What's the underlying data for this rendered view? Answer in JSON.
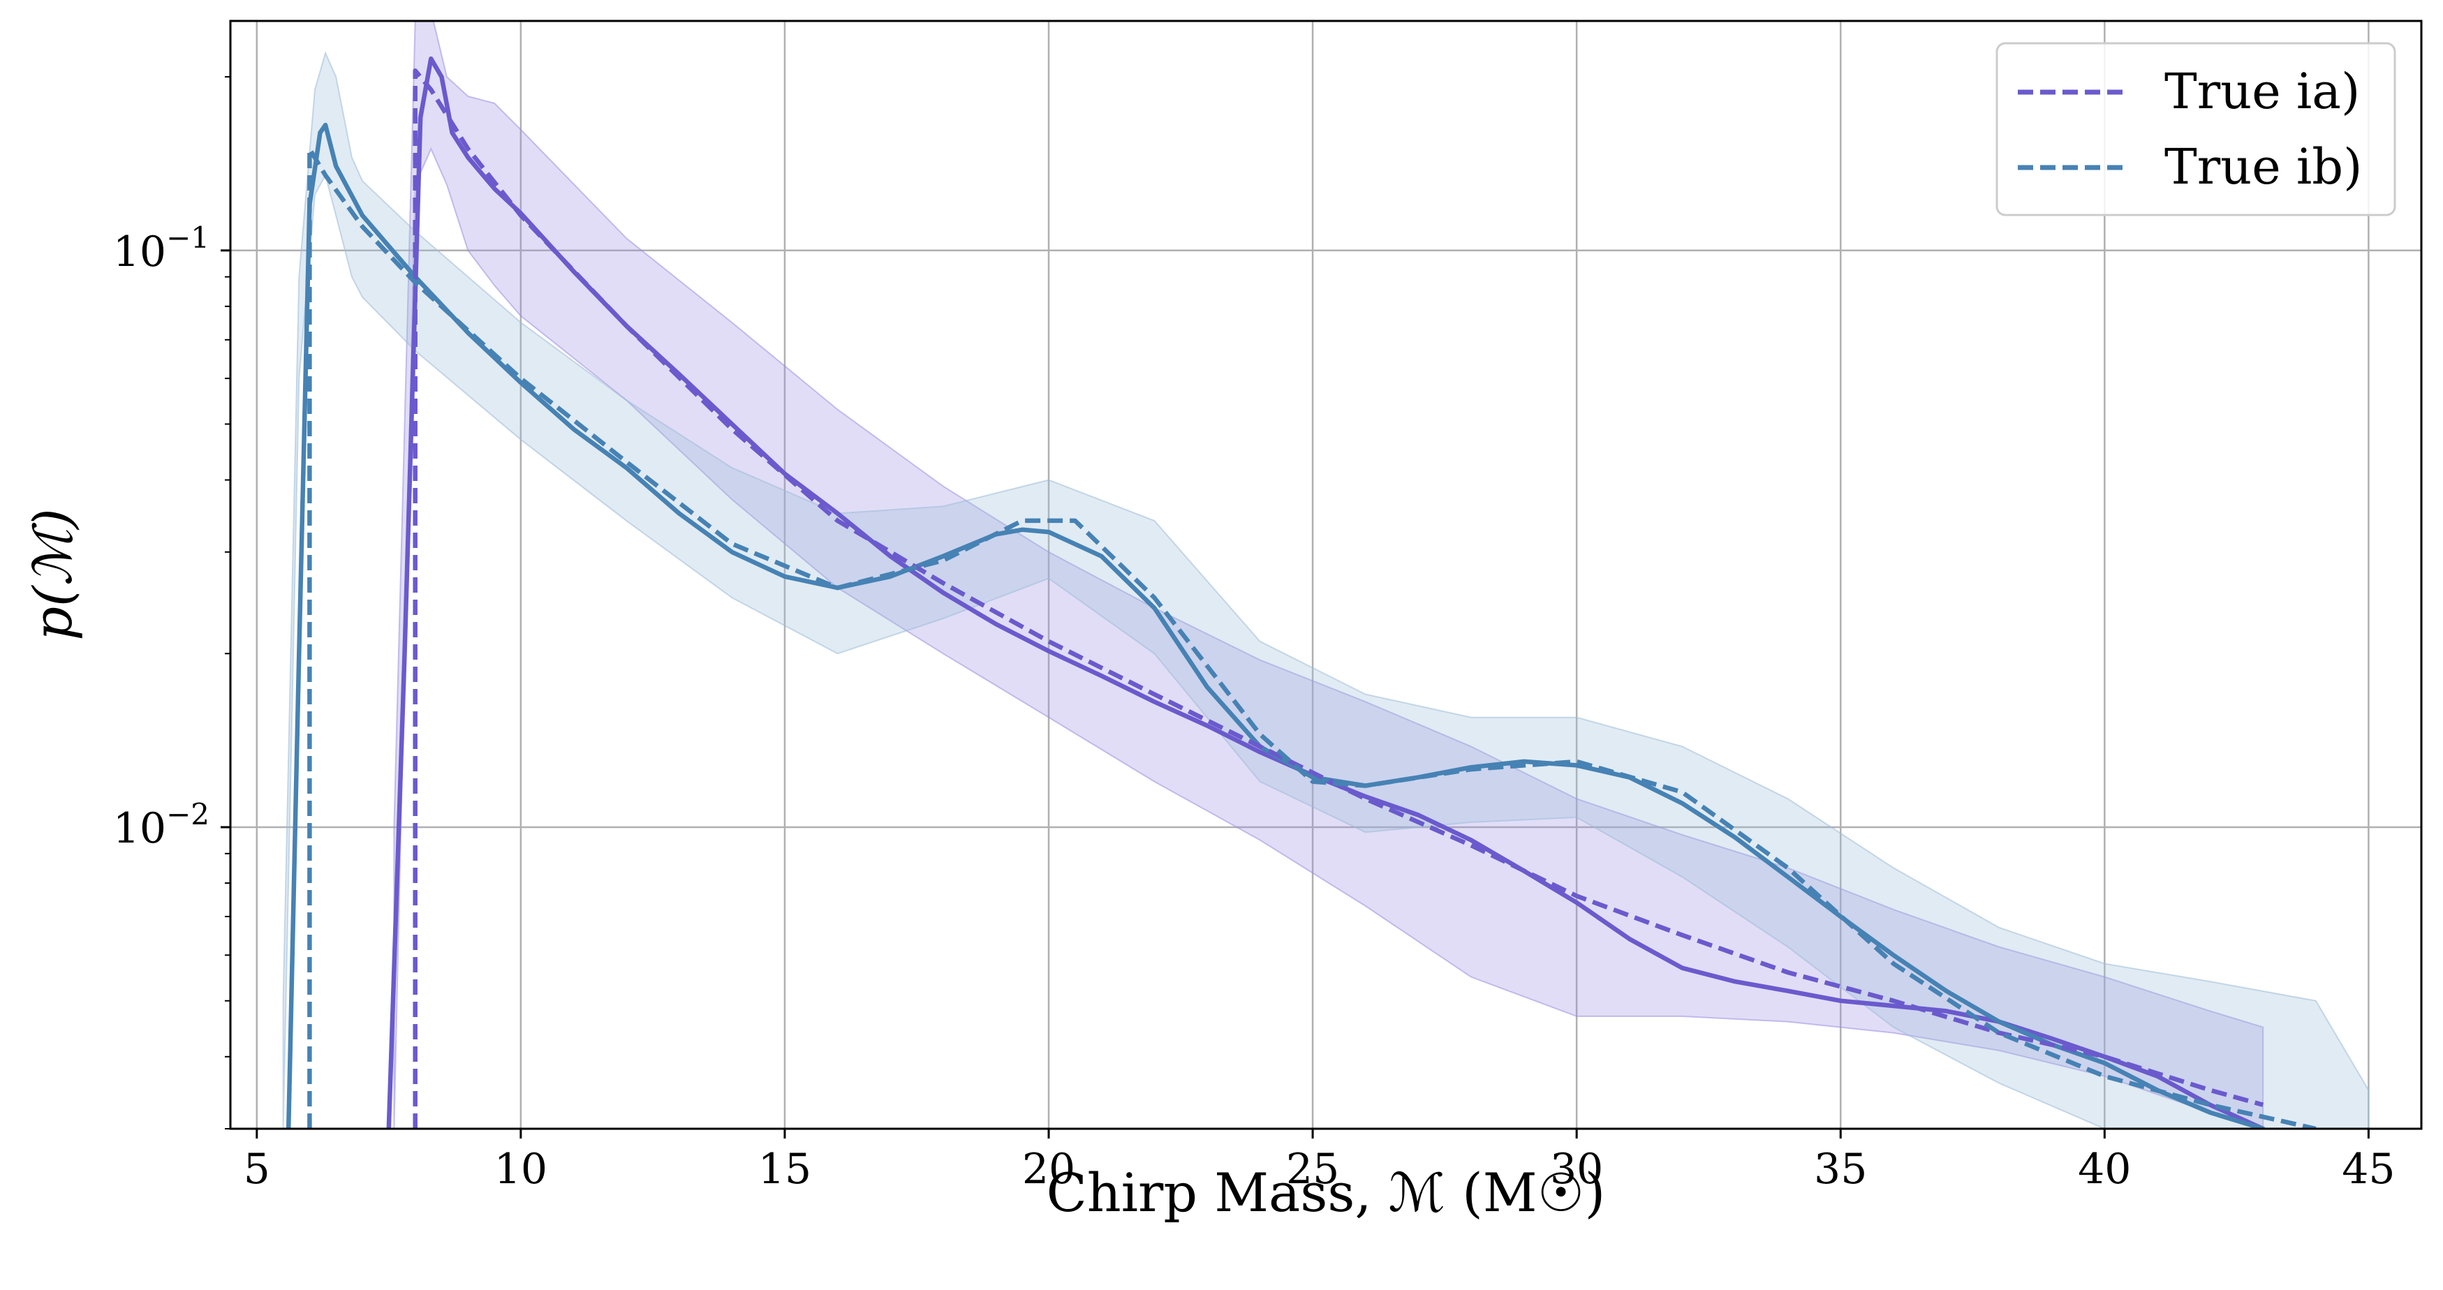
{
  "chart_data": {
    "type": "line",
    "xlabel": "Chirp Mass, ℳ (M☉)",
    "ylabel": "p(ℳ)",
    "xlim": [
      4.5,
      46
    ],
    "ylim": [
      0.003,
      0.25
    ],
    "yscale": "log",
    "grid": true,
    "legend_position": "top-right",
    "x_ticks": [
      5,
      10,
      15,
      20,
      25,
      30,
      35,
      40,
      45
    ],
    "x_tick_labels": [
      "5",
      "10",
      "15",
      "20",
      "25",
      "30",
      "35",
      "40",
      "45"
    ],
    "y_major_ticks": [
      0.1,
      0.01
    ],
    "y_tick_labels": [
      {
        "base": "10",
        "exp": "−1"
      },
      {
        "base": "10",
        "exp": "−2"
      }
    ],
    "series": [
      {
        "name": "True ia)",
        "color": "#6a5acd",
        "band_color": "#9b8fe0",
        "true_x": [
          8.0,
          8.0,
          8.3,
          9,
          10,
          12,
          14,
          16,
          18,
          20,
          22,
          24,
          26,
          28,
          30,
          32,
          34,
          36,
          38,
          40,
          42,
          43
        ],
        "true_y": [
          0.003,
          0.205,
          0.19,
          0.15,
          0.115,
          0.074,
          0.049,
          0.034,
          0.0265,
          0.021,
          0.017,
          0.0138,
          0.0112,
          0.0093,
          0.0076,
          0.0065,
          0.0056,
          0.005,
          0.0044,
          0.004,
          0.0035,
          0.0033
        ],
        "median_x": [
          7.5,
          7.8,
          8.1,
          8.3,
          8.5,
          8.7,
          9,
          9.5,
          10,
          11,
          12,
          13,
          14,
          15,
          16,
          17,
          18,
          19,
          20,
          21,
          22,
          23,
          24,
          25,
          26,
          27,
          28,
          29,
          30,
          31,
          32,
          33,
          34,
          35,
          36,
          37,
          38,
          39,
          40,
          41,
          42,
          43
        ],
        "median_y": [
          0.003,
          0.02,
          0.17,
          0.215,
          0.2,
          0.16,
          0.145,
          0.128,
          0.116,
          0.092,
          0.074,
          0.061,
          0.05,
          0.041,
          0.035,
          0.0295,
          0.0255,
          0.0225,
          0.0202,
          0.0183,
          0.0165,
          0.015,
          0.0135,
          0.0123,
          0.0113,
          0.0105,
          0.0095,
          0.0084,
          0.0074,
          0.0064,
          0.0057,
          0.0054,
          0.0052,
          0.005,
          0.0049,
          0.0048,
          0.0046,
          0.0043,
          0.004,
          0.0037,
          0.0033,
          0.003
        ],
        "band_x": [
          7.6,
          8,
          8.3,
          8.6,
          9,
          9.5,
          10,
          12,
          14,
          16,
          18,
          20,
          22,
          24,
          26,
          28,
          30,
          32,
          34,
          36,
          38,
          40,
          42,
          43
        ],
        "band_lo": [
          0.003,
          0.13,
          0.15,
          0.13,
          0.1,
          0.087,
          0.077,
          0.055,
          0.037,
          0.026,
          0.02,
          0.0155,
          0.012,
          0.0095,
          0.0073,
          0.0055,
          0.0047,
          0.0047,
          0.0046,
          0.0044,
          0.0041,
          0.0037,
          0.0032,
          0.003
        ],
        "band_hi": [
          0.01,
          0.25,
          0.26,
          0.2,
          0.185,
          0.18,
          0.162,
          0.105,
          0.075,
          0.053,
          0.039,
          0.03,
          0.024,
          0.0195,
          0.0165,
          0.0138,
          0.0112,
          0.0097,
          0.0085,
          0.0072,
          0.0062,
          0.0055,
          0.0048,
          0.0045
        ]
      },
      {
        "name": "True ib)",
        "color": "#4682b4",
        "band_color": "#9dbcd8",
        "true_x": [
          6.0,
          6.0,
          6.3,
          7,
          8,
          10,
          12,
          14,
          16,
          18,
          19.5,
          20.5,
          22,
          24,
          25,
          26,
          28,
          30,
          32,
          34,
          36,
          38,
          40,
          42,
          44
        ],
        "true_y": [
          0.003,
          0.15,
          0.135,
          0.11,
          0.088,
          0.06,
          0.043,
          0.031,
          0.026,
          0.029,
          0.034,
          0.034,
          0.025,
          0.0145,
          0.012,
          0.0118,
          0.0126,
          0.013,
          0.0115,
          0.0085,
          0.0058,
          0.0044,
          0.0037,
          0.0033,
          0.003
        ],
        "median_x": [
          5.6,
          5.8,
          6.0,
          6.2,
          6.3,
          6.5,
          7,
          8,
          9,
          10,
          11,
          12,
          13,
          14,
          15,
          16,
          17,
          18,
          19,
          19.5,
          20,
          21,
          22,
          23,
          24,
          25,
          26,
          27,
          28,
          29,
          30,
          31,
          32,
          33,
          34,
          35,
          36,
          37,
          38,
          39,
          40,
          41,
          42,
          43
        ],
        "median_y": [
          0.003,
          0.02,
          0.12,
          0.16,
          0.165,
          0.14,
          0.115,
          0.09,
          0.072,
          0.059,
          0.049,
          0.042,
          0.035,
          0.03,
          0.0272,
          0.026,
          0.0272,
          0.0295,
          0.0322,
          0.0328,
          0.0325,
          0.0295,
          0.024,
          0.0175,
          0.0138,
          0.0122,
          0.0118,
          0.0122,
          0.0127,
          0.013,
          0.0128,
          0.0122,
          0.011,
          0.0096,
          0.0082,
          0.007,
          0.006,
          0.0052,
          0.0046,
          0.0042,
          0.0039,
          0.0035,
          0.0032,
          0.003
        ],
        "band_x": [
          5.5,
          5.8,
          6.1,
          6.3,
          6.5,
          6.8,
          7,
          8,
          10,
          12,
          14,
          16,
          18,
          20,
          22,
          24,
          26,
          28,
          30,
          32,
          34,
          36,
          38,
          40,
          42,
          44,
          45
        ],
        "band_lo": [
          0.003,
          0.06,
          0.125,
          0.135,
          0.115,
          0.09,
          0.083,
          0.067,
          0.047,
          0.034,
          0.025,
          0.02,
          0.023,
          0.027,
          0.02,
          0.012,
          0.0098,
          0.0102,
          0.0104,
          0.0082,
          0.0062,
          0.0045,
          0.0036,
          0.003,
          0.003,
          0.003,
          0.003
        ],
        "band_hi": [
          0.005,
          0.09,
          0.19,
          0.22,
          0.2,
          0.145,
          0.132,
          0.108,
          0.075,
          0.055,
          0.042,
          0.035,
          0.036,
          0.04,
          0.034,
          0.021,
          0.017,
          0.0155,
          0.0155,
          0.0138,
          0.0112,
          0.0085,
          0.0067,
          0.0058,
          0.0054,
          0.005,
          0.0035
        ]
      }
    ]
  }
}
